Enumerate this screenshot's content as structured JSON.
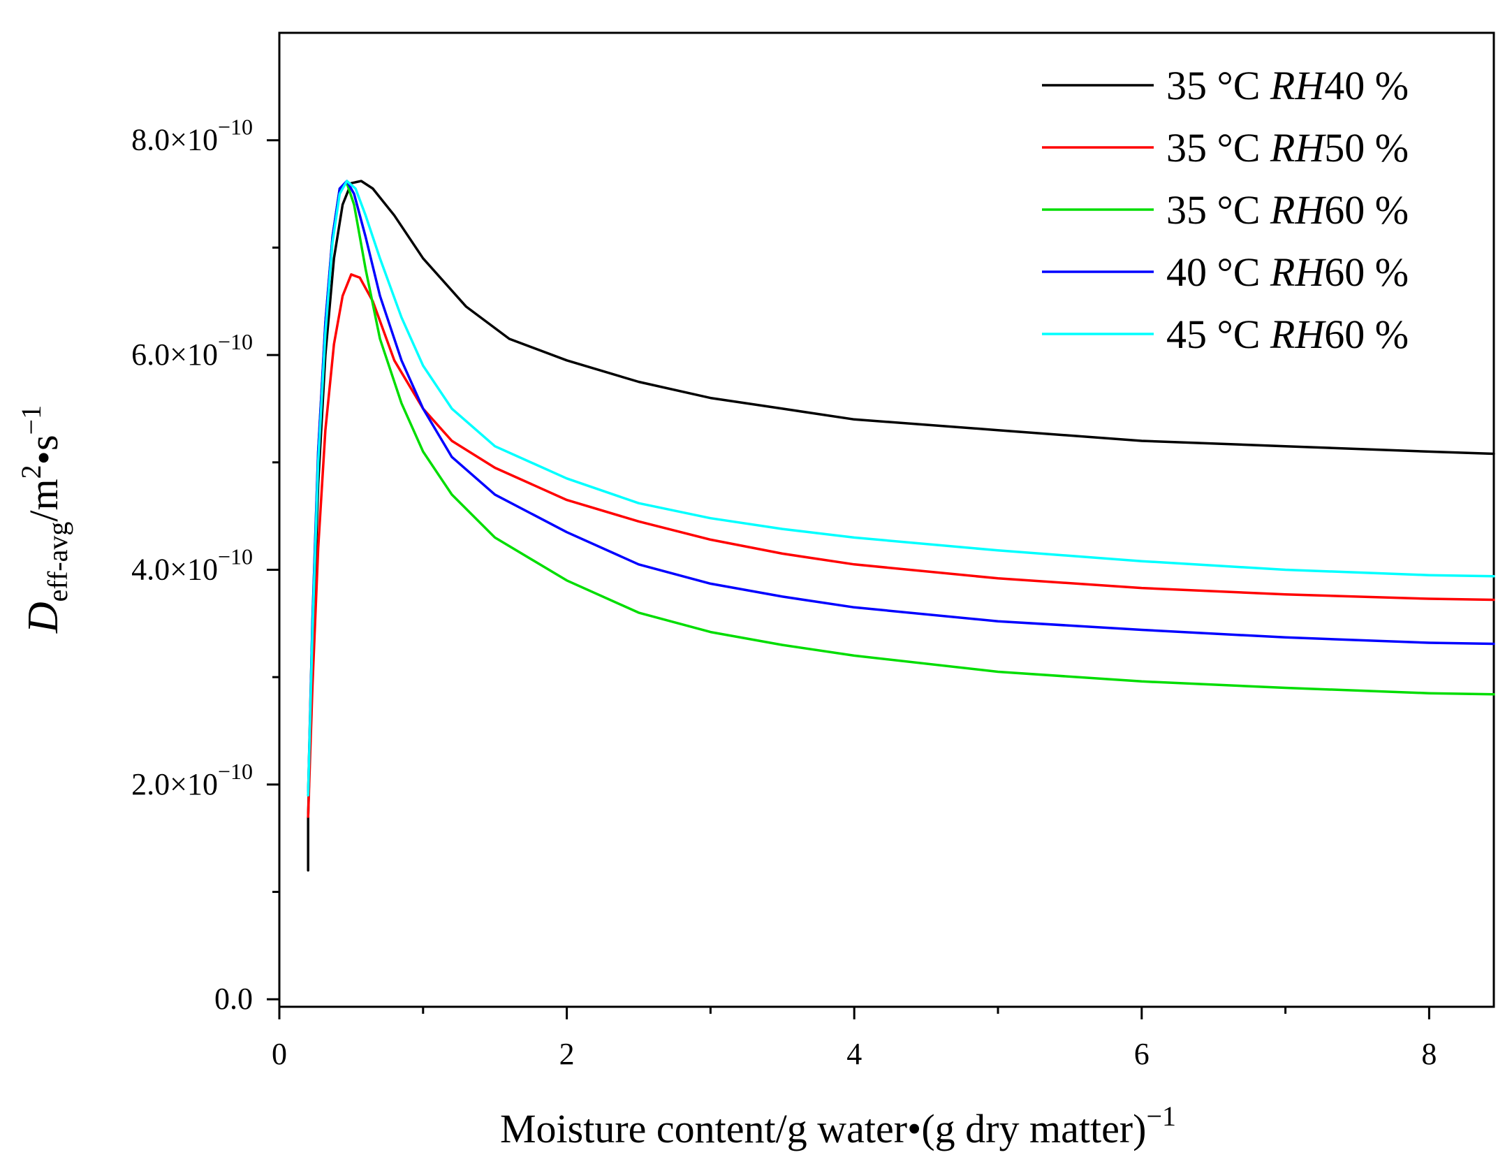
{
  "chart_data": {
    "type": "line",
    "title": "",
    "xlabel": "Moisture content/g water•(g dry matter)",
    "xlabel_sup": "−1",
    "ylabel_main": "D",
    "ylabel_sub": "eff-avg",
    "ylabel_rest_unit": "/m",
    "ylabel_sup2": "2",
    "ylabel_rest2": "•s",
    "ylabel_sup3": "−1",
    "xlim": [
      0,
      8.45
    ],
    "ylim": [
      -0.07,
      9.0
    ],
    "y_scale_note": "values in units of 1e-10 m2/s",
    "x_ticks": [
      0,
      2,
      4,
      6,
      8
    ],
    "x_tick_labels": [
      "0",
      "2",
      "4",
      "6",
      "8"
    ],
    "y_ticks": [
      0,
      2,
      4,
      6,
      8
    ],
    "y_tick_labels": [
      {
        "mantissa": "0.0",
        "exp": ""
      },
      {
        "mantissa": "2.0×10",
        "exp": "−10"
      },
      {
        "mantissa": "4.0×10",
        "exp": "−10"
      },
      {
        "mantissa": "6.0×10",
        "exp": "−10"
      },
      {
        "mantissa": "8.0×10",
        "exp": "−10"
      }
    ],
    "legend_position": "top-right",
    "series": [
      {
        "name": "35 °C ",
        "name_italic": "RH",
        "name_tail": "40 %",
        "color": "#000000",
        "points": [
          [
            0.2,
            1.2
          ],
          [
            0.2,
            1.7
          ],
          [
            0.23,
            3.2
          ],
          [
            0.27,
            4.8
          ],
          [
            0.32,
            6.0
          ],
          [
            0.38,
            6.9
          ],
          [
            0.44,
            7.4
          ],
          [
            0.5,
            7.6
          ],
          [
            0.57,
            7.62
          ],
          [
            0.65,
            7.55
          ],
          [
            0.8,
            7.3
          ],
          [
            1.0,
            6.9
          ],
          [
            1.3,
            6.45
          ],
          [
            1.6,
            6.15
          ],
          [
            2.0,
            5.95
          ],
          [
            2.5,
            5.75
          ],
          [
            3.0,
            5.6
          ],
          [
            3.5,
            5.5
          ],
          [
            4.0,
            5.4
          ],
          [
            5.0,
            5.3
          ],
          [
            6.0,
            5.2
          ],
          [
            7.0,
            5.15
          ],
          [
            8.0,
            5.1
          ],
          [
            8.45,
            5.08
          ]
        ]
      },
      {
        "name": "35 °C ",
        "name_italic": "RH",
        "name_tail": "50 %",
        "color": "#ff0000",
        "points": [
          [
            0.2,
            1.7
          ],
          [
            0.23,
            2.9
          ],
          [
            0.27,
            4.2
          ],
          [
            0.32,
            5.3
          ],
          [
            0.38,
            6.1
          ],
          [
            0.44,
            6.55
          ],
          [
            0.5,
            6.75
          ],
          [
            0.56,
            6.72
          ],
          [
            0.65,
            6.5
          ],
          [
            0.8,
            5.95
          ],
          [
            1.0,
            5.5
          ],
          [
            1.2,
            5.2
          ],
          [
            1.5,
            4.95
          ],
          [
            2.0,
            4.65
          ],
          [
            2.5,
            4.45
          ],
          [
            3.0,
            4.28
          ],
          [
            3.5,
            4.15
          ],
          [
            4.0,
            4.05
          ],
          [
            5.0,
            3.92
          ],
          [
            6.0,
            3.83
          ],
          [
            7.0,
            3.77
          ],
          [
            8.0,
            3.73
          ],
          [
            8.45,
            3.72
          ]
        ]
      },
      {
        "name": "35 °C ",
        "name_italic": "RH",
        "name_tail": "60 %",
        "color": "#00dd00",
        "points": [
          [
            0.2,
            1.9
          ],
          [
            0.23,
            3.5
          ],
          [
            0.27,
            5.1
          ],
          [
            0.32,
            6.3
          ],
          [
            0.37,
            7.1
          ],
          [
            0.42,
            7.55
          ],
          [
            0.47,
            7.6
          ],
          [
            0.52,
            7.4
          ],
          [
            0.6,
            6.8
          ],
          [
            0.7,
            6.15
          ],
          [
            0.85,
            5.55
          ],
          [
            1.0,
            5.1
          ],
          [
            1.2,
            4.7
          ],
          [
            1.5,
            4.3
          ],
          [
            2.0,
            3.9
          ],
          [
            2.5,
            3.6
          ],
          [
            3.0,
            3.42
          ],
          [
            3.5,
            3.3
          ],
          [
            4.0,
            3.2
          ],
          [
            5.0,
            3.05
          ],
          [
            6.0,
            2.96
          ],
          [
            7.0,
            2.9
          ],
          [
            8.0,
            2.85
          ],
          [
            8.45,
            2.84
          ]
        ]
      },
      {
        "name": "40 °C ",
        "name_italic": "RH",
        "name_tail": "60 %",
        "color": "#0000ff",
        "points": [
          [
            0.2,
            1.9
          ],
          [
            0.23,
            3.5
          ],
          [
            0.27,
            5.1
          ],
          [
            0.32,
            6.3
          ],
          [
            0.37,
            7.1
          ],
          [
            0.42,
            7.55
          ],
          [
            0.47,
            7.62
          ],
          [
            0.52,
            7.5
          ],
          [
            0.6,
            7.1
          ],
          [
            0.7,
            6.55
          ],
          [
            0.85,
            5.95
          ],
          [
            1.0,
            5.5
          ],
          [
            1.2,
            5.05
          ],
          [
            1.5,
            4.7
          ],
          [
            2.0,
            4.35
          ],
          [
            2.5,
            4.05
          ],
          [
            3.0,
            3.87
          ],
          [
            3.5,
            3.75
          ],
          [
            4.0,
            3.65
          ],
          [
            5.0,
            3.52
          ],
          [
            6.0,
            3.44
          ],
          [
            7.0,
            3.37
          ],
          [
            8.0,
            3.32
          ],
          [
            8.45,
            3.31
          ]
        ]
      },
      {
        "name": "45 °C ",
        "name_italic": "RH",
        "name_tail": "60 %",
        "color": "#00ffff",
        "points": [
          [
            0.2,
            1.9
          ],
          [
            0.23,
            3.4
          ],
          [
            0.27,
            5.0
          ],
          [
            0.32,
            6.2
          ],
          [
            0.37,
            7.05
          ],
          [
            0.42,
            7.5
          ],
          [
            0.47,
            7.62
          ],
          [
            0.53,
            7.55
          ],
          [
            0.6,
            7.3
          ],
          [
            0.7,
            6.9
          ],
          [
            0.85,
            6.35
          ],
          [
            1.0,
            5.9
          ],
          [
            1.2,
            5.5
          ],
          [
            1.5,
            5.15
          ],
          [
            2.0,
            4.85
          ],
          [
            2.5,
            4.62
          ],
          [
            3.0,
            4.48
          ],
          [
            3.5,
            4.38
          ],
          [
            4.0,
            4.3
          ],
          [
            5.0,
            4.18
          ],
          [
            6.0,
            4.08
          ],
          [
            7.0,
            4.0
          ],
          [
            8.0,
            3.95
          ],
          [
            8.45,
            3.94
          ]
        ]
      }
    ]
  }
}
